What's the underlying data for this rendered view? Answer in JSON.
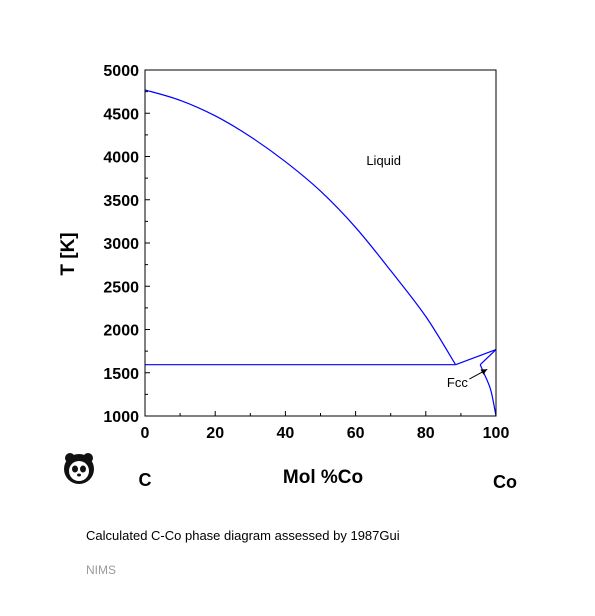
{
  "chart_data": {
    "type": "line",
    "xlabel": "Mol %Co",
    "ylabel": "T [K]",
    "xlim": [
      0,
      100
    ],
    "ylim": [
      1000,
      5000
    ],
    "x_ticks": [
      "0",
      "20",
      "40",
      "60",
      "80",
      "100"
    ],
    "y_ticks": [
      "1000",
      "1500",
      "2000",
      "2500",
      "3000",
      "3500",
      "4000",
      "4500",
      "5000"
    ],
    "grid": false,
    "end_labels": {
      "left": "C",
      "right": "Co"
    },
    "series": [
      {
        "values": [
          [
            0,
            4770
          ],
          [
            10,
            4650
          ],
          [
            20,
            4470
          ],
          [
            30,
            4230
          ],
          [
            40,
            3940
          ],
          [
            50,
            3600
          ],
          [
            60,
            3180
          ],
          [
            70,
            2680
          ],
          [
            80,
            2150
          ],
          [
            88.5,
            1593
          ]
        ]
      },
      {
        "values": [
          [
            0,
            1593
          ],
          [
            88.5,
            1593
          ]
        ]
      },
      {
        "values": [
          [
            88.5,
            1593
          ],
          [
            100,
            1768
          ]
        ]
      },
      {
        "values": [
          [
            95.5,
            1593
          ],
          [
            100,
            1768
          ]
        ]
      },
      {
        "values": [
          [
            95.5,
            1593
          ],
          [
            96.5,
            1500
          ],
          [
            98.5,
            1300
          ],
          [
            100,
            1000
          ]
        ]
      }
    ],
    "annotations": [
      {
        "text": "Liquid",
        "x": 68,
        "y": 3900
      },
      {
        "text": "Fcc",
        "x": 89,
        "y": 1335,
        "arrow_to": [
          97.5,
          1540
        ]
      }
    ],
    "line_color": "#0000ff"
  },
  "caption": "Calculated C-Co phase diagram assessed by 1987Gui",
  "footer": "NIMS",
  "logo": {
    "icon": "panda-logo-icon"
  }
}
